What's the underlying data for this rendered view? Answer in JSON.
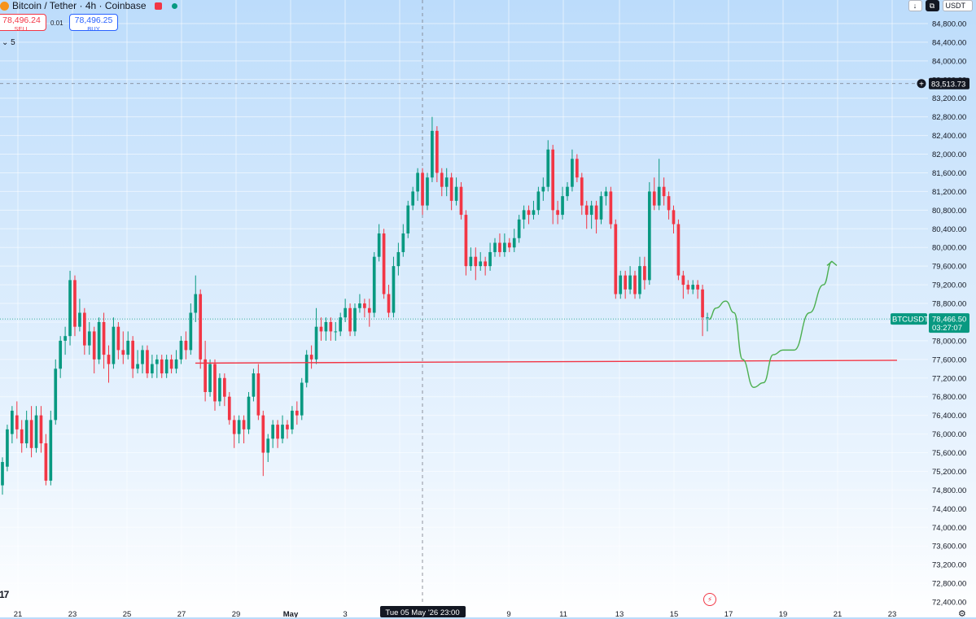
{
  "header": {
    "symbol_title": "Bitcoin / Tether · 4h · Coinbase",
    "sell_price": "78,496.24",
    "sell_label": "SELL",
    "spread": "0.01",
    "buy_price": "78,496.25",
    "buy_label": "BUY",
    "collapse_label": "5"
  },
  "toolbar": {
    "currency": "USDT"
  },
  "chart_data": {
    "type": "candlestick",
    "symbol": "BTCUSDT",
    "interval": "4h",
    "exchange": "Coinbase",
    "ylim": [
      72200,
      84900
    ],
    "y_ticks": [
      "84,800.00",
      "84,400.00",
      "84,000.00",
      "83,600.00",
      "83,200.00",
      "82,800.00",
      "82,400.00",
      "82,000.00",
      "81,600.00",
      "81,200.00",
      "80,800.00",
      "80,400.00",
      "80,000.00",
      "79,600.00",
      "79,200.00",
      "78,800.00",
      "78,400.00",
      "78,000.00",
      "77,600.00",
      "77,200.00",
      "76,800.00",
      "76,400.00",
      "76,000.00",
      "75,600.00",
      "75,200.00",
      "74,800.00",
      "74,400.00",
      "74,000.00",
      "73,600.00",
      "73,200.00",
      "72,800.00",
      "72,400.00"
    ],
    "x_ticks": [
      "21",
      "23",
      "25",
      "27",
      "29",
      "May",
      "3",
      "5",
      "7",
      "9",
      "11",
      "13",
      "15",
      "17",
      "19",
      "21",
      "23"
    ],
    "crosshair": {
      "price_label": "83,513.73",
      "time_label": "Tue 05 May '26   23:00",
      "price": 83513.73
    },
    "last_price": {
      "symbol_label": "BTCUSDT",
      "price_label": "78,466.50",
      "countdown": "03:27:07",
      "price": 78466.5
    },
    "support_line": {
      "from_price": 77520,
      "to_price": 77580,
      "color": "#f23645"
    },
    "projection_color": "#4caf50",
    "candles": [
      [
        74900,
        75400,
        74700,
        75500
      ],
      [
        75300,
        76100,
        75200,
        76200
      ],
      [
        76000,
        76500,
        75800,
        76600
      ],
      [
        76400,
        76100,
        75900,
        76700
      ],
      [
        76100,
        75800,
        75600,
        76300
      ],
      [
        75800,
        76300,
        75700,
        76500
      ],
      [
        76300,
        75700,
        75500,
        76600
      ],
      [
        75700,
        76400,
        75600,
        76600
      ],
      [
        76400,
        75800,
        75600,
        76600
      ],
      [
        75800,
        75000,
        74900,
        76000
      ],
      [
        75000,
        76300,
        74900,
        76500
      ],
      [
        76300,
        77400,
        76200,
        77600
      ],
      [
        77400,
        78000,
        77200,
        78100
      ],
      [
        78000,
        78100,
        77700,
        78300
      ],
      [
        78100,
        79300,
        77900,
        79500
      ],
      [
        79300,
        78300,
        78100,
        79400
      ],
      [
        78300,
        78600,
        78200,
        78900
      ],
      [
        78600,
        77900,
        77700,
        78700
      ],
      [
        77900,
        78200,
        77700,
        78400
      ],
      [
        78200,
        77600,
        77300,
        78300
      ],
      [
        77600,
        78400,
        77500,
        78500
      ],
      [
        78400,
        77700,
        77400,
        78600
      ],
      [
        77700,
        77500,
        77100,
        77900
      ],
      [
        77500,
        78300,
        77400,
        78500
      ],
      [
        78300,
        77800,
        77600,
        78400
      ],
      [
        77800,
        77700,
        77500,
        78200
      ],
      [
        77700,
        78000,
        77600,
        78200
      ],
      [
        78000,
        77400,
        77200,
        78100
      ],
      [
        77400,
        77500,
        77300,
        77800
      ],
      [
        77500,
        77800,
        77300,
        77900
      ],
      [
        77800,
        77300,
        77200,
        77900
      ],
      [
        77300,
        77500,
        77200,
        77700
      ],
      [
        77500,
        77600,
        77200,
        77700
      ],
      [
        77600,
        77300,
        77200,
        77700
      ],
      [
        77300,
        77600,
        77200,
        77700
      ],
      [
        77600,
        77400,
        77300,
        77700
      ],
      [
        77400,
        77600,
        77300,
        77800
      ],
      [
        77600,
        78000,
        77500,
        78100
      ],
      [
        78000,
        77800,
        77600,
        78200
      ],
      [
        77800,
        78600,
        77700,
        78800
      ],
      [
        78600,
        79000,
        78400,
        79400
      ],
      [
        79000,
        77600,
        77400,
        79100
      ],
      [
        77600,
        76900,
        76700,
        78000
      ],
      [
        76900,
        77500,
        76800,
        77600
      ],
      [
        77500,
        76700,
        76500,
        77600
      ],
      [
        76700,
        77200,
        76600,
        77300
      ],
      [
        77200,
        76800,
        76600,
        77300
      ],
      [
        76800,
        76300,
        76200,
        76900
      ],
      [
        76300,
        76000,
        75700,
        76400
      ],
      [
        76000,
        76300,
        75800,
        76400
      ],
      [
        76300,
        76100,
        75800,
        76400
      ],
      [
        76100,
        76800,
        76000,
        76900
      ],
      [
        76800,
        77300,
        76700,
        77400
      ],
      [
        77300,
        76400,
        76300,
        77500
      ],
      [
        76400,
        75600,
        75100,
        76500
      ],
      [
        75600,
        75900,
        75400,
        76000
      ],
      [
        75900,
        76200,
        75700,
        76300
      ],
      [
        76200,
        75900,
        75700,
        76300
      ],
      [
        75900,
        76200,
        75800,
        76400
      ],
      [
        76200,
        76100,
        75900,
        76300
      ],
      [
        76100,
        76500,
        76000,
        76600
      ],
      [
        76500,
        76400,
        76200,
        76700
      ],
      [
        76400,
        77100,
        76300,
        77200
      ],
      [
        77100,
        77700,
        77000,
        77800
      ],
      [
        77700,
        77600,
        77400,
        77900
      ],
      [
        77600,
        78300,
        77500,
        78700
      ],
      [
        78300,
        78200,
        78000,
        78500
      ],
      [
        78200,
        78400,
        78000,
        78500
      ],
      [
        78400,
        78200,
        78000,
        78500
      ],
      [
        78200,
        78200,
        78000,
        78400
      ],
      [
        78200,
        78500,
        78100,
        78600
      ],
      [
        78500,
        78700,
        78400,
        78900
      ],
      [
        78700,
        78200,
        78100,
        78800
      ],
      [
        78200,
        78700,
        78100,
        78800
      ],
      [
        78700,
        78800,
        78600,
        79000
      ],
      [
        78800,
        78700,
        78500,
        78900
      ],
      [
        78700,
        78600,
        78300,
        78900
      ],
      [
        78600,
        79800,
        78500,
        79900
      ],
      [
        79800,
        80300,
        79700,
        80500
      ],
      [
        80300,
        79000,
        78900,
        80400
      ],
      [
        79000,
        78600,
        78500,
        79200
      ],
      [
        78600,
        79600,
        78500,
        79800
      ],
      [
        79600,
        79900,
        79400,
        80100
      ],
      [
        79900,
        80300,
        79800,
        80500
      ],
      [
        80300,
        80900,
        80200,
        81000
      ],
      [
        80900,
        81200,
        80800,
        81300
      ],
      [
        81200,
        81600,
        81000,
        81700
      ],
      [
        81600,
        80900,
        80700,
        81700
      ],
      [
        80900,
        81500,
        80800,
        81600
      ],
      [
        81500,
        82500,
        81400,
        82800
      ],
      [
        82500,
        81600,
        81400,
        82600
      ],
      [
        81600,
        81300,
        81100,
        81700
      ],
      [
        81300,
        81500,
        81100,
        81700
      ],
      [
        81500,
        81000,
        80800,
        81600
      ],
      [
        81000,
        81300,
        80900,
        81500
      ],
      [
        81300,
        80700,
        80600,
        81400
      ],
      [
        80700,
        79600,
        79400,
        80800
      ],
      [
        79600,
        79800,
        79500,
        80000
      ],
      [
        79800,
        79600,
        79300,
        80000
      ],
      [
        79600,
        79700,
        79500,
        79900
      ],
      [
        79700,
        79600,
        79400,
        79800
      ],
      [
        79600,
        79900,
        79500,
        80100
      ],
      [
        79900,
        80100,
        79800,
        80200
      ],
      [
        80100,
        79900,
        79800,
        80300
      ],
      [
        79900,
        80100,
        79800,
        80300
      ],
      [
        80100,
        80000,
        79900,
        80200
      ],
      [
        80000,
        80200,
        79900,
        80400
      ],
      [
        80200,
        80600,
        80100,
        80700
      ],
      [
        80600,
        80800,
        80400,
        80900
      ],
      [
        80800,
        80700,
        80500,
        80900
      ],
      [
        80700,
        80800,
        80600,
        81000
      ],
      [
        80800,
        81200,
        80700,
        81300
      ],
      [
        81200,
        81300,
        81000,
        81500
      ],
      [
        81300,
        82100,
        81200,
        82300
      ],
      [
        82100,
        80800,
        80500,
        82200
      ],
      [
        80800,
        80700,
        80500,
        81000
      ],
      [
        80700,
        81100,
        80600,
        81300
      ],
      [
        81100,
        81300,
        81000,
        81400
      ],
      [
        81300,
        81900,
        81200,
        82100
      ],
      [
        81900,
        81500,
        81400,
        82000
      ],
      [
        81500,
        80900,
        80700,
        81600
      ],
      [
        80900,
        80700,
        80400,
        81000
      ],
      [
        80700,
        80900,
        80400,
        81000
      ],
      [
        80900,
        80600,
        80300,
        81000
      ],
      [
        80600,
        81100,
        80500,
        81200
      ],
      [
        81100,
        81200,
        80900,
        81300
      ],
      [
        81200,
        80500,
        80400,
        81300
      ],
      [
        80500,
        79000,
        78900,
        80600
      ],
      [
        79000,
        79400,
        78900,
        79500
      ],
      [
        79400,
        79100,
        78900,
        79500
      ],
      [
        79100,
        79400,
        79000,
        79600
      ],
      [
        79400,
        79000,
        78900,
        79500
      ],
      [
        79000,
        79600,
        78900,
        79800
      ],
      [
        79600,
        79300,
        79100,
        79800
      ],
      [
        79300,
        81200,
        79200,
        81400
      ],
      [
        81200,
        80900,
        80800,
        81500
      ],
      [
        80900,
        81300,
        80800,
        81900
      ],
      [
        81300,
        81100,
        80900,
        81500
      ],
      [
        81100,
        80800,
        80600,
        81200
      ],
      [
        80800,
        80500,
        80300,
        80900
      ],
      [
        80500,
        79400,
        79300,
        80600
      ],
      [
        79400,
        79200,
        78900,
        79500
      ],
      [
        79200,
        79100,
        79000,
        79300
      ],
      [
        79100,
        79200,
        79000,
        79300
      ],
      [
        79200,
        79100,
        78900,
        79300
      ],
      [
        79100,
        78500,
        78100,
        79200
      ],
      [
        78500,
        78500,
        78200,
        78600
      ]
    ],
    "projection_path": [
      [
        78460,
        0
      ],
      [
        78700,
        0.5
      ],
      [
        78850,
        1.2
      ],
      [
        78600,
        1.8
      ],
      [
        77600,
        2.4
      ],
      [
        77000,
        3.2
      ],
      [
        77100,
        3.9
      ],
      [
        77700,
        4.6
      ],
      [
        77800,
        5.3
      ],
      [
        77800,
        6.1
      ],
      [
        78600,
        7.2
      ],
      [
        79200,
        8.2
      ],
      [
        79700,
        8.8
      ]
    ]
  }
}
